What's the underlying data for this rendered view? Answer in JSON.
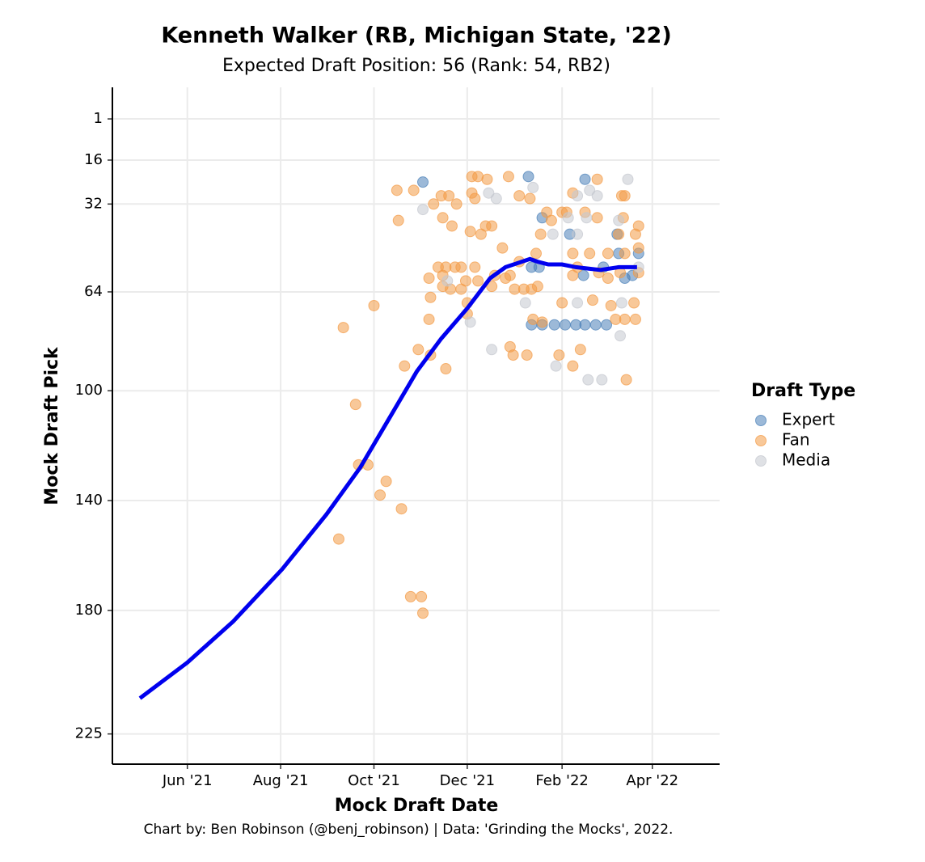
{
  "chart_data": {
    "type": "scatter",
    "title": "Kenneth Walker (RB, Michigan State, '22)",
    "subtitle": "Expected Draft Position: 56 (Rank: 54, RB2)",
    "xlabel": "Mock Draft Date",
    "ylabel": "Mock Draft Pick",
    "caption": "Chart by: Ben Robinson (@benj_robinson) | Data: 'Grinding the Mocks', 2022.",
    "legend_title": "Draft Type",
    "legend_position": "right",
    "xlim": [
      "2021-04-13",
      "2022-05-15"
    ],
    "xticks": [
      {
        "value": "2021-06-01",
        "label": "Jun '21"
      },
      {
        "value": "2021-08-01",
        "label": "Aug '21"
      },
      {
        "value": "2021-10-01",
        "label": "Oct '21"
      },
      {
        "value": "2021-12-01",
        "label": "Dec '21"
      },
      {
        "value": "2022-02-01",
        "label": "Feb '22"
      },
      {
        "value": "2022-04-01",
        "label": "Apr '22"
      }
    ],
    "ylim": [
      -10.5,
      236
    ],
    "y_reversed": true,
    "yticks": [
      1,
      16,
      32,
      64,
      100,
      140,
      180,
      225
    ],
    "grid": true,
    "series": [
      {
        "name": "Expert",
        "color": "#4a80b8",
        "x": [
          "2021-11-02",
          "2022-01-10",
          "2022-02-16",
          "2022-01-19",
          "2022-02-06",
          "2022-03-09",
          "2022-01-12",
          "2022-01-17",
          "2022-02-28",
          "2022-03-10",
          "2022-03-23",
          "2022-03-14",
          "2022-03-19",
          "2022-01-12",
          "2022-01-19",
          "2022-01-27",
          "2022-02-03",
          "2022-02-10",
          "2022-02-16",
          "2022-02-23",
          "2022-03-02",
          "2022-02-15"
        ],
        "values": [
          24,
          22,
          23,
          37,
          43,
          43,
          55,
          55,
          55,
          50,
          50,
          59,
          58,
          76,
          76,
          76,
          76,
          76,
          76,
          76,
          76,
          58
        ]
      },
      {
        "name": "Fan",
        "color": "#f39a45",
        "x": [
          "2021-09-11",
          "2021-10-01",
          "2021-09-19",
          "2021-09-21",
          "2021-09-27",
          "2021-10-09",
          "2021-10-05",
          "2021-10-19",
          "2021-09-08",
          "2021-10-25",
          "2021-11-01",
          "2021-11-02",
          "2021-10-16",
          "2021-10-27",
          "2021-10-17",
          "2021-10-21",
          "2021-10-30",
          "2021-11-07",
          "2021-11-17",
          "2021-11-06",
          "2021-11-07",
          "2021-11-06",
          "2021-11-09",
          "2021-11-14",
          "2021-11-19",
          "2021-11-15",
          "2021-11-21",
          "2021-11-24",
          "2021-12-04",
          "2021-12-08",
          "2021-12-14",
          "2021-12-04",
          "2021-12-06",
          "2021-12-03",
          "2021-12-10",
          "2021-12-13",
          "2021-12-17",
          "2021-12-24",
          "2021-12-28",
          "2022-01-04",
          "2022-01-11",
          "2022-01-04",
          "2022-01-15",
          "2021-11-12",
          "2021-11-17",
          "2021-11-23",
          "2021-11-27",
          "2021-11-15",
          "2021-11-15",
          "2021-11-20",
          "2021-11-27",
          "2021-11-30",
          "2021-12-06",
          "2021-12-08",
          "2021-12-17",
          "2021-12-19",
          "2021-12-26",
          "2021-12-29",
          "2022-01-01",
          "2022-01-07",
          "2022-01-12",
          "2022-01-16",
          "2021-12-01",
          "2021-12-01",
          "2021-12-29",
          "2021-12-31",
          "2022-01-09",
          "2022-01-13",
          "2022-01-19",
          "2022-01-30",
          "2022-02-01",
          "2022-02-08",
          "2022-02-13",
          "2022-02-08",
          "2022-02-11",
          "2022-01-18",
          "2022-01-22",
          "2022-01-25",
          "2022-02-01",
          "2022-02-04",
          "2022-02-08",
          "2022-02-16",
          "2022-02-24",
          "2022-02-24",
          "2022-03-12",
          "2022-03-14",
          "2022-03-13",
          "2022-03-10",
          "2022-03-23",
          "2022-03-21",
          "2022-03-23",
          "2022-02-25",
          "2022-03-03",
          "2022-03-11",
          "2022-03-23",
          "2022-02-21",
          "2022-03-05",
          "2022-03-20",
          "2022-03-08",
          "2022-03-14",
          "2022-03-21",
          "2022-03-15",
          "2022-02-08",
          "2022-02-19",
          "2022-03-03",
          "2022-03-14"
        ],
        "values": [
          77,
          69,
          105,
          127,
          127,
          133,
          138,
          143,
          154,
          175,
          175,
          181,
          27,
          27,
          38,
          91,
          85,
          87,
          92,
          74,
          66,
          59,
          32,
          29,
          29,
          37,
          40,
          32,
          22,
          22,
          23,
          28,
          30,
          42,
          43,
          40,
          40,
          48,
          22,
          29,
          30,
          53,
          50,
          55,
          55,
          55,
          55,
          58,
          62,
          63,
          63,
          60,
          55,
          60,
          62,
          58,
          59,
          58,
          63,
          63,
          63,
          62,
          68,
          72,
          84,
          87,
          87,
          74,
          75,
          87,
          68,
          91,
          85,
          58,
          55,
          43,
          35,
          38,
          35,
          35,
          28,
          35,
          37,
          23,
          29,
          29,
          37,
          43,
          40,
          43,
          48,
          57,
          59,
          57,
          57,
          67,
          69,
          68,
          74,
          74,
          74,
          96,
          50,
          50,
          50,
          50
        ]
      },
      {
        "name": "Media",
        "color": "#c4c8cf",
        "x": [
          "2021-11-02",
          "2021-12-15",
          "2021-12-20",
          "2021-11-18",
          "2021-12-03",
          "2021-12-17",
          "2022-01-08",
          "2022-01-13",
          "2022-01-26",
          "2022-02-05",
          "2022-02-11",
          "2022-02-11",
          "2022-02-19",
          "2022-02-24",
          "2022-02-17",
          "2022-02-11",
          "2022-01-28",
          "2022-02-18",
          "2022-02-27",
          "2022-03-11",
          "2022-03-12",
          "2022-03-16",
          "2022-03-10",
          "2022-03-23"
        ],
        "values": [
          34,
          28,
          30,
          60,
          75,
          85,
          68,
          26,
          43,
          37,
          29,
          43,
          27,
          29,
          37,
          68,
          91,
          96,
          96,
          80,
          68,
          23,
          38,
          55
        ]
      }
    ],
    "trend": {
      "color": "#0000ee",
      "x": [
        "2021-05-01",
        "2021-06-01",
        "2021-07-01",
        "2021-08-02",
        "2021-08-31",
        "2021-09-22",
        "2021-10-10",
        "2021-10-29",
        "2021-11-14",
        "2021-12-01",
        "2021-12-16",
        "2021-12-26",
        "2022-01-11",
        "2022-01-16",
        "2022-01-23",
        "2022-02-01",
        "2022-02-10",
        "2022-02-26",
        "2022-03-10",
        "2022-03-22"
      ],
      "values": [
        212,
        199,
        184,
        165,
        145,
        128,
        111,
        93,
        81,
        70,
        59,
        55,
        52,
        53,
        54,
        54,
        55,
        56,
        55,
        55
      ]
    }
  }
}
